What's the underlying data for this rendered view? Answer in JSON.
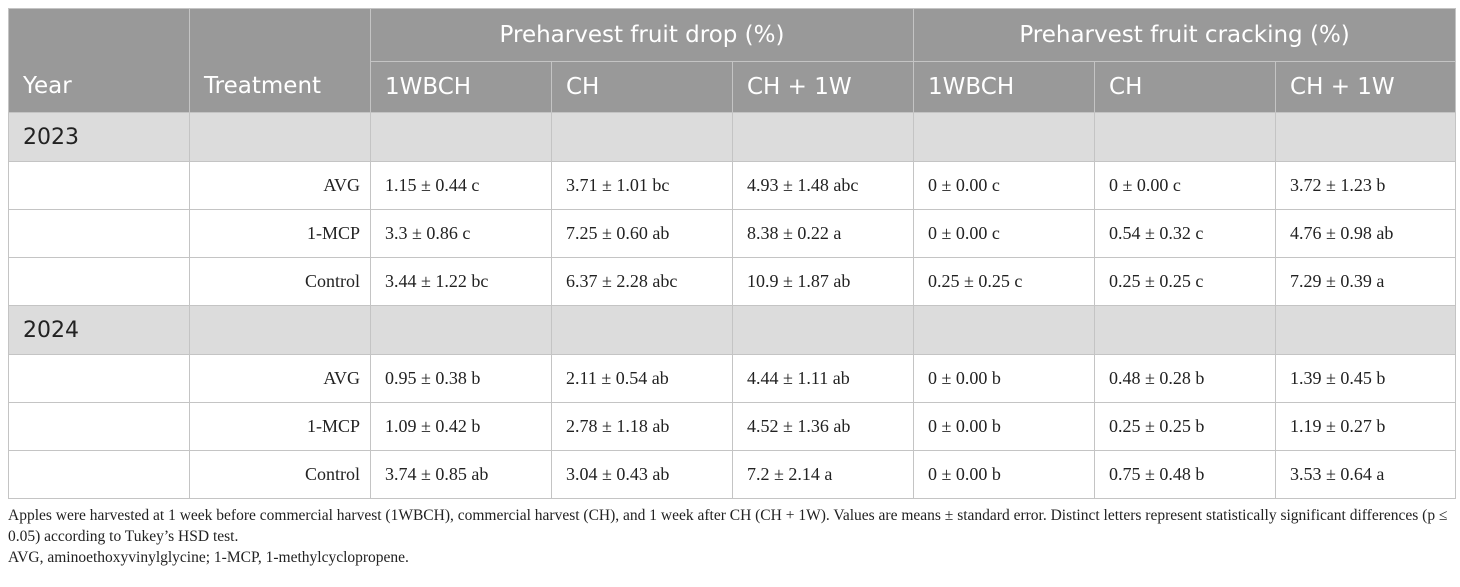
{
  "header": {
    "year": "Year",
    "treatment": "Treatment",
    "drop_group": "Preharvest fruit drop (%)",
    "crack_group": "Preharvest fruit cracking (%)",
    "drop_cols": [
      "1WBCH",
      "CH",
      "CH + 1W"
    ],
    "crack_cols": [
      "1WBCH",
      "CH",
      "CH + 1W"
    ]
  },
  "years": [
    {
      "year": "2023",
      "rows": [
        {
          "treatment": "AVG",
          "values": [
            "1.15 ± 0.44 c",
            "3.71 ± 1.01 bc",
            "4.93 ± 1.48 abc",
            "0 ± 0.00 c",
            "0 ± 0.00 c",
            "3.72 ± 1.23 b"
          ]
        },
        {
          "treatment": "1-MCP",
          "values": [
            "3.3 ± 0.86 c",
            "7.25 ± 0.60 ab",
            "8.38 ± 0.22 a",
            "0 ± 0.00 c",
            "0.54 ± 0.32 c",
            "4.76 ± 0.98 ab"
          ]
        },
        {
          "treatment": "Control",
          "values": [
            "3.44 ± 1.22 bc",
            "6.37 ± 2.28 abc",
            "10.9 ± 1.87 ab",
            "0.25 ± 0.25 c",
            "0.25 ± 0.25 c",
            "7.29 ± 0.39 a"
          ]
        }
      ]
    },
    {
      "year": "2024",
      "rows": [
        {
          "treatment": "AVG",
          "values": [
            "0.95 ± 0.38 b",
            "2.11 ± 0.54 ab",
            "4.44 ± 1.11 ab",
            "0 ± 0.00 b",
            "0.48 ± 0.28 b",
            "1.39 ± 0.45 b"
          ]
        },
        {
          "treatment": "1-MCP",
          "values": [
            "1.09 ± 0.42 b",
            "2.78 ± 1.18 ab",
            "4.52 ± 1.36 ab",
            "0 ± 0.00 b",
            "0.25 ± 0.25 b",
            "1.19 ± 0.27 b"
          ]
        },
        {
          "treatment": "Control",
          "values": [
            "3.74 ± 0.85 ab",
            "3.04 ± 0.43 ab",
            "7.2 ± 2.14 a",
            "0 ± 0.00 b",
            "0.75 ± 0.48 b",
            "3.53 ± 0.64 a"
          ]
        }
      ]
    }
  ],
  "footnote": {
    "line1": "Apples were harvested at 1 week before commercial harvest (1WBCH), commercial harvest (CH), and 1 week after CH (CH + 1W). Values are means ± standard error. Distinct letters represent statistically significant differences (p ≤ 0.05) according to Tukey’s HSD test.",
    "line2": "AVG, aminoethoxyvinylglycine; 1-MCP, 1-methylcyclopropene."
  },
  "colors": {
    "header_bg": "#999999",
    "year_row_bg": "#dcdcdc",
    "border": "#c4c4c4"
  }
}
